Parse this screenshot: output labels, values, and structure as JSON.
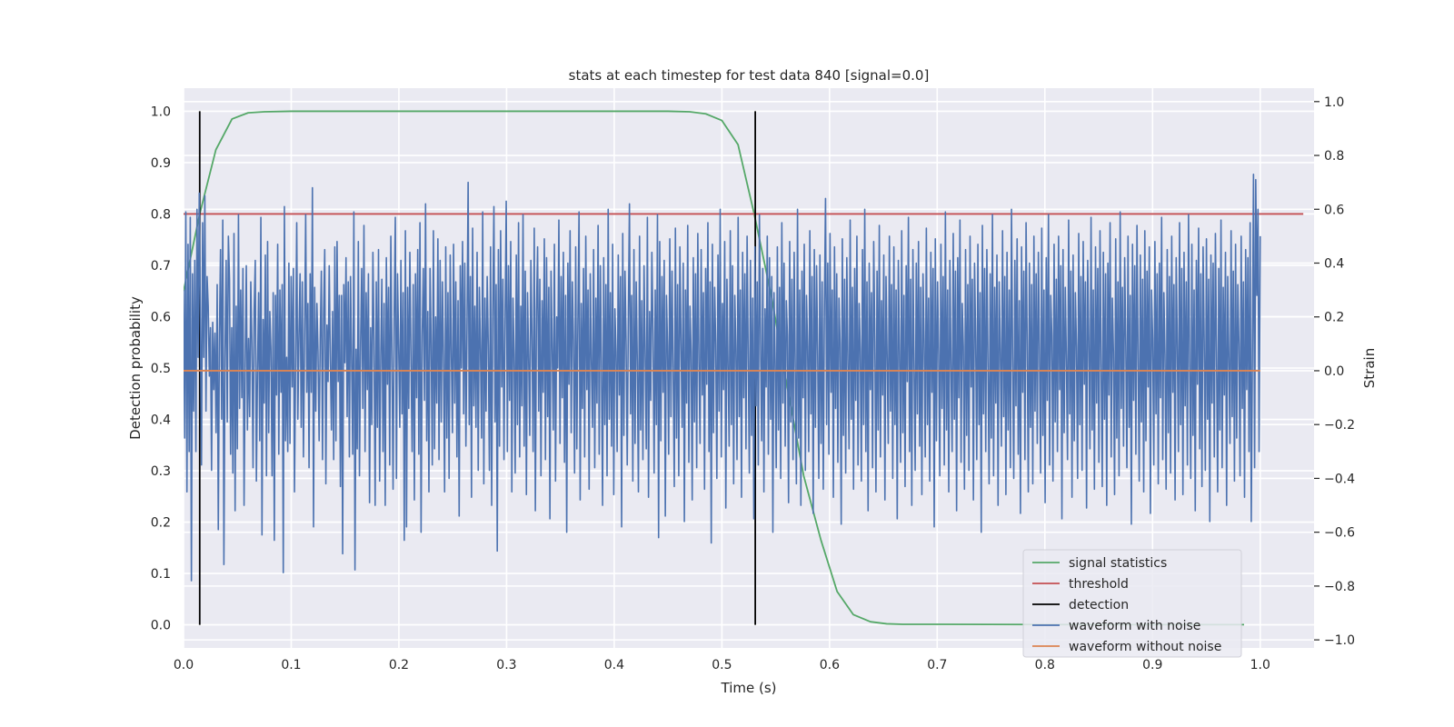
{
  "chart_data": {
    "type": "line",
    "title": "stats at each timestep for test data 840 [signal=0.0]",
    "xlabel": "Time (s)",
    "ylabel": "Detection probability",
    "y2label": "Strain",
    "xlim": [
      0.0,
      1.05
    ],
    "ylim": [
      -0.045,
      1.045
    ],
    "y2lim": [
      -1.03,
      1.05
    ],
    "xticks": [
      "0.0",
      "0.1",
      "0.2",
      "0.3",
      "0.4",
      "0.5",
      "0.6",
      "0.7",
      "0.8",
      "0.9",
      "1.0"
    ],
    "yticks": [
      "0.0",
      "0.1",
      "0.2",
      "0.3",
      "0.4",
      "0.5",
      "0.6",
      "0.7",
      "0.8",
      "0.9",
      "1.0"
    ],
    "y2ticks": [
      "−1.0",
      "−0.8",
      "−0.6",
      "−0.4",
      "−0.2",
      "0.0",
      "0.2",
      "0.4",
      "0.6",
      "0.8",
      "1.0"
    ],
    "grid": true,
    "legend_position": "lower-right",
    "legend": [
      {
        "label": "signal statistics",
        "color": "#55a868"
      },
      {
        "label": "threshold",
        "color": "#c44e52"
      },
      {
        "label": "detection",
        "color": "#000000"
      },
      {
        "label": "waveform with noise",
        "color": "#4c72b0"
      },
      {
        "label": "waveform without noise",
        "color": "#dd8452"
      }
    ],
    "series": [
      {
        "name": "signal statistics",
        "color": "#55a868",
        "axis": "left",
        "x": [
          0.0,
          0.015,
          0.03,
          0.045,
          0.06,
          0.075,
          0.1,
          0.2,
          0.3,
          0.4,
          0.45,
          0.47,
          0.485,
          0.5,
          0.515,
          0.53,
          0.546,
          0.561,
          0.576,
          0.592,
          0.607,
          0.622,
          0.638,
          0.653,
          0.668,
          0.7,
          0.8,
          0.9,
          0.985
        ],
        "values": [
          0.65,
          0.8,
          0.925,
          0.985,
          0.997,
          0.999,
          1.0,
          1.0,
          1.0,
          1.0,
          1.0,
          0.999,
          0.995,
          0.982,
          0.935,
          0.8,
          0.64,
          0.46,
          0.29,
          0.165,
          0.065,
          0.02,
          0.006,
          0.002,
          0.001,
          0.001,
          0.0005,
          0.0004,
          0.0004
        ]
      },
      {
        "name": "threshold",
        "color": "#c44e52",
        "axis": "left",
        "x": [
          0.0,
          1.04
        ],
        "values": [
          0.8,
          0.8
        ]
      },
      {
        "name": "detection",
        "color": "#000000",
        "axis": "left",
        "type": "vlines",
        "x": [
          0.015,
          0.531
        ],
        "range": [
          0.0,
          1.0
        ]
      },
      {
        "name": "waveform with noise",
        "color": "#4c72b0",
        "axis": "right",
        "x_start": 0.0,
        "x_end": 1.0,
        "values": [
          0.3,
          -0.25,
          0.59,
          -0.45,
          0.47,
          -0.3,
          0.57,
          -0.78,
          0.36,
          -0.15,
          0.41,
          -0.3,
          0.6,
          0.05,
          0.66,
          0.2,
          -0.35,
          0.55,
          0.05,
          0.65,
          -0.15,
          0.35,
          0.24,
          -0.02,
          0.16,
          -0.37,
          0.18,
          -0.07,
          0.14,
          -0.23,
          0.32,
          -0.59,
          0.13,
          0.45,
          -0.18,
          0.56,
          -0.72,
          0.05,
          0.41,
          -0.19,
          0.5,
          0.34,
          -0.31,
          0.16,
          -0.38,
          0.51,
          -0.52,
          0.24,
          -0.29,
          0.58,
          -0.14,
          0.3,
          -0.1,
          0.38,
          -0.5,
          0.02,
          0.39,
          -0.22,
          0.12,
          -0.17,
          0.33,
          0.1,
          -0.36,
          0.22,
          0.41,
          -0.41,
          0.0,
          0.29,
          -0.26,
          0.57,
          -0.61,
          0.19,
          -0.12,
          0.43,
          -0.39,
          0.48,
          -0.23,
          0.22,
          0.08,
          -0.39,
          0.29,
          -0.63,
          0.28,
          -0.09,
          0.47,
          -0.31,
          0.3,
          -0.08,
          0.32,
          -0.75,
          0.61,
          -0.26,
          0.05,
          -0.3,
          0.4,
          -0.27,
          0.35,
          -0.06,
          0.38,
          -0.45,
          0.03,
          0.55,
          -0.18,
          0.13,
          0.36,
          -0.21,
          0.33,
          -0.32,
          0.11,
          0.58,
          -0.08,
          0.25,
          -0.36,
          0.36,
          -0.08,
          0.68,
          -0.58,
          0.31,
          -0.15,
          0.25,
          0.07,
          -0.26,
          0.12,
          0.37,
          -0.33,
          0.21,
          0.45,
          -0.42,
          0.17,
          -0.04,
          0.39,
          0.04,
          -0.22,
          0.22,
          -0.33,
          0.46,
          -0.26,
          0.48,
          -0.04,
          0.28,
          -0.43,
          0.28,
          -0.68,
          0.32,
          0.03,
          0.42,
          -0.17,
          0.33,
          -0.32,
          0.35,
          0.04,
          -0.31,
          0.59,
          -0.74,
          0.08,
          -0.29,
          0.48,
          -0.39,
          0.1,
          0.38,
          -0.14,
          0.54,
          -0.3,
          0.29,
          -0.07,
          0.36,
          -0.49,
          0.16,
          -0.2,
          0.44,
          0.11,
          -0.5,
          0.33,
          -0.21,
          0.45,
          -0.41,
          0.05,
          0.34,
          -0.3,
          0.25,
          -0.5,
          0.42,
          -0.05,
          0.31,
          -0.35,
          0.5,
          0.05,
          -0.44,
          0.21,
          0.57,
          -0.4,
          0.36,
          0.09,
          -0.21,
          0.41,
          -0.16,
          0.29,
          -0.63,
          0.52,
          -0.58,
          0.31,
          -0.14,
          0.44,
          0.04,
          -0.3,
          0.32,
          -0.48,
          0.36,
          -0.1,
          0.45,
          -0.31,
          0.55,
          -0.6,
          0.13,
          0.38,
          -0.11,
          0.62,
          -0.26,
          0.22,
          -0.45,
          0.38,
          0.1,
          -0.35,
          0.52,
          -0.29,
          0.2,
          -0.12,
          0.49,
          -0.33,
          0.41,
          -0.19,
          0.33,
          0.05,
          -0.45,
          0.46,
          -0.25,
          0.29,
          -0.4,
          0.43,
          0.07,
          -0.23,
          0.47,
          -0.12,
          0.33,
          -0.32,
          0.26,
          -0.54,
          0.39,
          0.01,
          0.48,
          -0.16,
          0.4,
          -0.28,
          0.16,
          0.7,
          -0.2,
          0.35,
          -0.47,
          0.53,
          -0.13,
          0.24,
          -0.21,
          0.44,
          -0.37,
          0.31,
          0.08,
          -0.25,
          0.59,
          -0.42,
          0.27,
          -0.15,
          0.35,
          0.09,
          -0.37,
          0.46,
          -0.5,
          0.21,
          0.61,
          -0.19,
          0.32,
          -0.67,
          0.45,
          -0.28,
          0.52,
          -0.06,
          0.34,
          -0.33,
          0.19,
          0.63,
          -0.3,
          0.39,
          -0.11,
          0.48,
          -0.45,
          0.27,
          0.06,
          -0.38,
          0.43,
          -0.2,
          0.55,
          -0.32,
          0.24,
          -0.13,
          0.58,
          -0.28,
          0.37,
          -0.46,
          0.29,
          0.05,
          -0.24,
          0.41,
          0.12,
          -0.3,
          0.53,
          -0.52,
          0.22,
          0.46,
          -0.15,
          0.34,
          -0.39,
          0.26,
          -0.08,
          0.49,
          -0.33,
          0.42,
          -0.17,
          0.31,
          -0.55,
          0.37,
          0.09,
          -0.22,
          0.47,
          -0.41,
          0.2,
          0.01,
          0.56,
          -0.27,
          0.35,
          -0.1,
          0.44,
          -0.34,
          0.28,
          -0.6,
          0.4,
          -0.05,
          0.52,
          -0.23,
          0.33,
          0.11,
          -0.38,
          0.46,
          -0.29,
          0.19,
          0.59,
          -0.48,
          0.25,
          -0.14,
          0.38,
          -0.32,
          0.5,
          -0.07,
          0.3,
          -0.44,
          0.36,
          0.04,
          -0.21,
          0.45,
          -0.36,
          0.27,
          -0.12,
          0.54,
          -0.31,
          0.39,
          0.02,
          -0.5,
          0.42,
          -0.2,
          0.32,
          -0.39,
          0.6,
          -0.18,
          0.29,
          -0.28,
          0.47,
          -0.46,
          0.23,
          0.07,
          -0.3,
          0.43,
          -0.09,
          0.35,
          -0.58,
          0.51,
          -0.24,
          0.37,
          0.1,
          -0.35,
          0.2,
          0.62,
          -0.16,
          0.28,
          -0.41,
          0.45,
          -0.27,
          0.33,
          0.03,
          -0.45,
          0.5,
          -0.22,
          0.26,
          -0.33,
          0.39,
          0.06,
          -0.29,
          0.57,
          -0.47,
          0.22,
          -0.11,
          0.44,
          0.14,
          -0.38,
          0.3,
          -0.2,
          0.58,
          -0.62,
          0.48,
          -0.26,
          0.35,
          -0.08,
          0.41,
          -0.54,
          0.28,
          0.09,
          -0.31,
          0.49,
          -0.17,
          0.37,
          0.0,
          -0.43,
          0.53,
          -0.25,
          0.32,
          -0.39,
          0.46,
          0.12,
          -0.21,
          0.4,
          -0.56,
          0.3,
          -0.12,
          0.54,
          -0.34,
          0.24,
          0.07,
          -0.48,
          0.42,
          -0.19,
          0.36,
          -0.36,
          0.51,
          0.04,
          -0.27,
          0.45,
          -0.09,
          0.29,
          -0.44,
          0.38,
          -0.05,
          0.55,
          -0.3,
          0.33,
          -0.64,
          0.47,
          -0.23,
          0.31,
          0.1,
          -0.4,
          0.43,
          -0.15,
          0.6,
          -0.32,
          0.25,
          -0.07,
          0.48,
          -0.51,
          0.34,
          0.02,
          -0.28,
          0.52,
          -0.2,
          0.39,
          -0.42,
          0.28,
          0.08,
          -0.33,
          0.57,
          -0.17,
          0.3,
          -0.47,
          0.44,
          -0.1,
          0.36,
          -0.29,
          0.5,
          0.05,
          -0.38,
          0.41,
          -0.24,
          0.27,
          -0.55,
          0.46,
          -0.13,
          0.33,
          -0.35,
          0.58,
          0.11,
          -0.26,
          0.38,
          -0.45,
          0.23,
          -0.06,
          0.5,
          -0.31,
          0.42,
          -0.18,
          0.35,
          -0.6,
          0.29,
          0.04,
          -0.36,
          0.46,
          -0.22,
          0.31,
          -0.4,
          0.55,
          -0.12,
          0.4,
          -0.28,
          0.26,
          0.13,
          -0.49,
          0.48,
          -0.19,
          0.34,
          -0.33,
          0.44,
          0.0,
          -0.42,
          0.6,
          -0.25,
          0.3,
          -0.5,
          0.37,
          -0.1,
          0.47,
          -0.37,
          0.28,
          0.09,
          -0.3,
          0.52,
          -0.16,
          0.35,
          -0.53,
          0.45,
          -0.21,
          0.39,
          0.06,
          -0.4,
          0.43,
          -0.27,
          0.33,
          -0.44,
          0.24,
          0.64,
          -0.2,
          0.4,
          -0.31,
          0.51,
          -0.08,
          0.3,
          -0.47,
          0.46,
          -0.14,
          0.36,
          -0.34,
          0.27,
          0.1,
          -0.57,
          0.49,
          -0.24,
          0.34,
          -0.38,
          0.42,
          0.03,
          -0.29,
          0.56,
          -0.18,
          0.31,
          -0.44,
          0.38,
          -0.11,
          0.5,
          -0.35,
          0.25,
          0.08,
          -0.41,
          0.45,
          -0.2,
          0.6,
          -0.3,
          0.33,
          -0.52,
          0.4,
          -0.07,
          0.29,
          -0.36,
          0.48,
          0.12,
          -0.45,
          0.37,
          -0.22,
          0.54,
          -0.32,
          0.26,
          -0.09,
          0.43,
          -0.48,
          0.35,
          0.05,
          -0.27,
          0.5,
          -0.15,
          0.32,
          -0.4,
          0.46,
          -0.2,
          0.3,
          -0.55,
          0.41,
          0.07,
          -0.34,
          0.52,
          -0.23,
          0.28,
          -0.43,
          0.39,
          -0.04,
          0.57,
          -0.3,
          0.34,
          -0.5,
          0.45,
          0.02,
          -0.37,
          0.4,
          -0.16,
          0.48,
          -0.28,
          0.31,
          -0.46,
          0.36,
          0.11,
          -0.32,
          0.53,
          -0.2,
          0.27,
          -0.41,
          0.44,
          -0.08,
          0.38,
          -0.58,
          0.49,
          -0.26,
          0.33,
          0.06,
          -0.39,
          0.47,
          -0.14,
          0.35,
          -0.35,
          0.59,
          -0.22,
          0.3,
          -0.45,
          0.41,
          0.01,
          -0.3,
          0.51,
          -0.18,
          0.37,
          -0.52,
          0.42,
          -0.1,
          0.56,
          -0.34,
          0.25,
          0.09,
          -0.44,
          0.45,
          -0.24,
          0.32,
          -0.37,
          0.5,
          -0.06,
          0.34,
          -0.48,
          0.4,
          0.12,
          -0.33,
          0.47,
          -0.2,
          0.29,
          -0.6,
          0.54,
          -0.16,
          0.38,
          -0.3,
          0.45,
          0.03,
          -0.42,
          0.36,
          -0.25,
          0.58,
          -0.39,
          0.31,
          -0.12,
          0.43,
          -0.5,
          0.33,
          0.08,
          -0.28,
          0.52,
          -0.17,
          0.35,
          -0.46,
          0.44,
          -0.22,
          0.3,
          -0.36,
          0.6,
          0.05,
          -0.4,
          0.41,
          -0.13,
          0.49,
          -0.31,
          0.26,
          -0.53,
          0.46,
          -0.08,
          0.37,
          -0.33,
          0.55,
          0.1,
          -0.45,
          0.4,
          -0.21,
          0.32,
          -0.42,
          0.5,
          -0.15,
          0.36,
          -0.27,
          0.44,
          0.06,
          -0.38,
          0.53,
          -0.24,
          0.3,
          -0.49,
          0.42,
          -0.11,
          0.58,
          -0.35,
          0.28,
          0.13,
          -0.41,
          0.47,
          -0.19,
          0.34,
          -0.3,
          0.5,
          -0.07,
          0.39,
          -0.55,
          0.45,
          -0.23,
          0.31,
          0.04,
          -0.33,
          0.56,
          -0.16,
          0.37,
          -0.47,
          0.43,
          -0.26,
          0.29,
          0.09,
          -0.4,
          0.51,
          -0.2,
          0.35,
          -0.37,
          0.48,
          -0.05,
          0.33,
          -0.51,
          0.41,
          0.11,
          -0.29,
          0.57,
          -0.22,
          0.3,
          -0.44,
          0.46,
          -0.12,
          0.38,
          -0.34,
          0.52,
          0.02,
          -0.43,
          0.44,
          -0.18,
          0.36,
          -0.5,
          0.4,
          -0.09,
          0.55,
          -0.32,
          0.27,
          0.07,
          -0.46,
          0.49,
          -0.25,
          0.33,
          -0.39,
          0.59,
          -0.14,
          0.31,
          -0.28,
          0.42,
          0.1,
          -0.36,
          0.5,
          -0.21,
          0.28,
          -0.57,
          0.47,
          -0.11,
          0.39,
          -0.31,
          0.54,
          0.04,
          -0.41,
          0.43,
          -0.19,
          0.34,
          -0.45,
          0.52,
          -0.26,
          0.37,
          -0.06,
          0.46,
          -0.53,
          0.3,
          0.12,
          -0.35,
          0.48,
          -0.16,
          0.36,
          -0.42,
          0.4,
          -0.1,
          0.57,
          -0.33,
          0.29,
          0.06,
          -0.44,
          0.45,
          -0.23,
          0.35,
          -0.38,
          0.5,
          -0.08,
          0.32,
          -0.48,
          0.42,
          0.09,
          -0.3,
          0.55,
          -0.2,
          0.38,
          -0.46,
          0.44,
          -0.13,
          0.33,
          -0.35,
          0.58,
          0.03,
          -0.4,
          0.47,
          -0.24,
          0.3,
          -0.52,
          0.41,
          -0.05,
          0.53,
          -0.29,
          0.36,
          -0.43,
          0.46,
          0.11,
          -0.37,
          0.49,
          -0.18,
          0.34,
          -0.56,
          0.43,
          -0.12,
          0.4,
          -0.32,
          0.51,
          0.07,
          -0.45,
          0.38,
          -0.22,
          0.56,
          -0.36,
          0.31,
          -0.09,
          0.44,
          -0.5,
          0.35,
          0.05,
          -0.27,
          0.52,
          -0.17,
          0.37,
          -0.41,
          0.47,
          -0.25,
          0.32,
          0.1,
          -0.39,
          0.5,
          -0.14,
          0.33,
          -0.47,
          0.45,
          -0.07,
          0.42,
          -0.3,
          0.55,
          -0.56,
          0.05,
          0.73,
          -0.36,
          0.71,
          0.28,
          0.6,
          -0.3,
          0.5
        ]
      },
      {
        "name": "waveform without noise",
        "color": "#dd8452",
        "axis": "right",
        "x": [
          0.0,
          1.0
        ],
        "values": [
          0.0,
          0.0
        ]
      }
    ]
  }
}
